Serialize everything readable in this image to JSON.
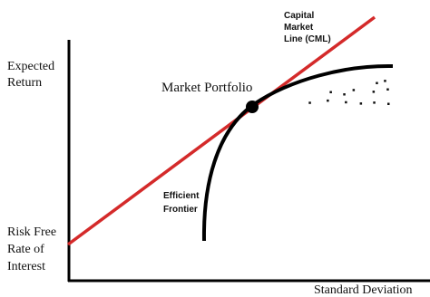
{
  "labels": {
    "cml": [
      "Capital",
      "Market",
      "Line (CML)"
    ],
    "y_axis": [
      "Expected",
      "Return"
    ],
    "market_portfolio": "Market Portfolio",
    "efficient_frontier": [
      "Efficient",
      "Frontier"
    ],
    "risk_free": [
      "Risk Free",
      "Rate of",
      "Interest"
    ],
    "x_axis": "Standard Deviation"
  }
}
